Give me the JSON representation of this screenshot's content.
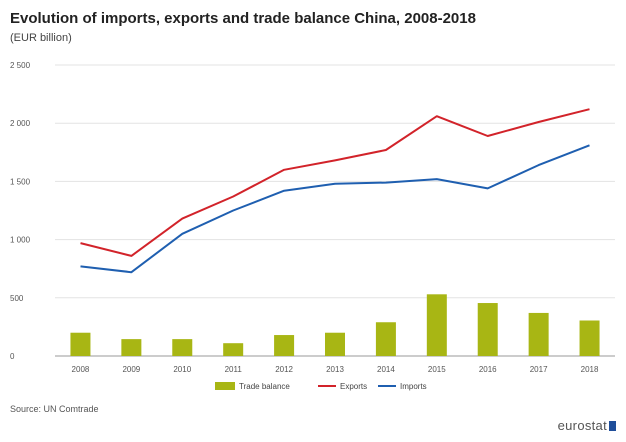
{
  "chart_data": {
    "type": "bar+line",
    "title": "Evolution of imports, exports and trade balance China, 2008-2018",
    "subtitle": "(EUR billion)",
    "categories": [
      "2008",
      "2009",
      "2010",
      "2011",
      "2012",
      "2013",
      "2014",
      "2015",
      "2016",
      "2017",
      "2018"
    ],
    "ylim": [
      0,
      2500
    ],
    "yticks": [
      0,
      500,
      1000,
      1500,
      2000,
      2500
    ],
    "ytick_labels": [
      "0",
      "500",
      "1 000",
      "1 500",
      "2 000",
      "2 500"
    ],
    "grid": true,
    "legend_position": "bottom",
    "series": [
      {
        "name": "Trade balance",
        "type": "bar",
        "color": "#a8b614",
        "values": [
          200,
          145,
          145,
          110,
          180,
          200,
          290,
          530,
          455,
          370,
          305
        ]
      },
      {
        "name": "Exports",
        "type": "line",
        "color": "#d2232a",
        "values": [
          970,
          860,
          1180,
          1370,
          1600,
          1680,
          1770,
          2060,
          1890,
          2010,
          2120
        ]
      },
      {
        "name": "Imports",
        "type": "line",
        "color": "#1f5fb0",
        "values": [
          770,
          720,
          1050,
          1250,
          1420,
          1480,
          1490,
          1520,
          1440,
          1640,
          1810
        ]
      }
    ],
    "source": "Source: UN Comtrade",
    "logo_text": "eurostat"
  }
}
